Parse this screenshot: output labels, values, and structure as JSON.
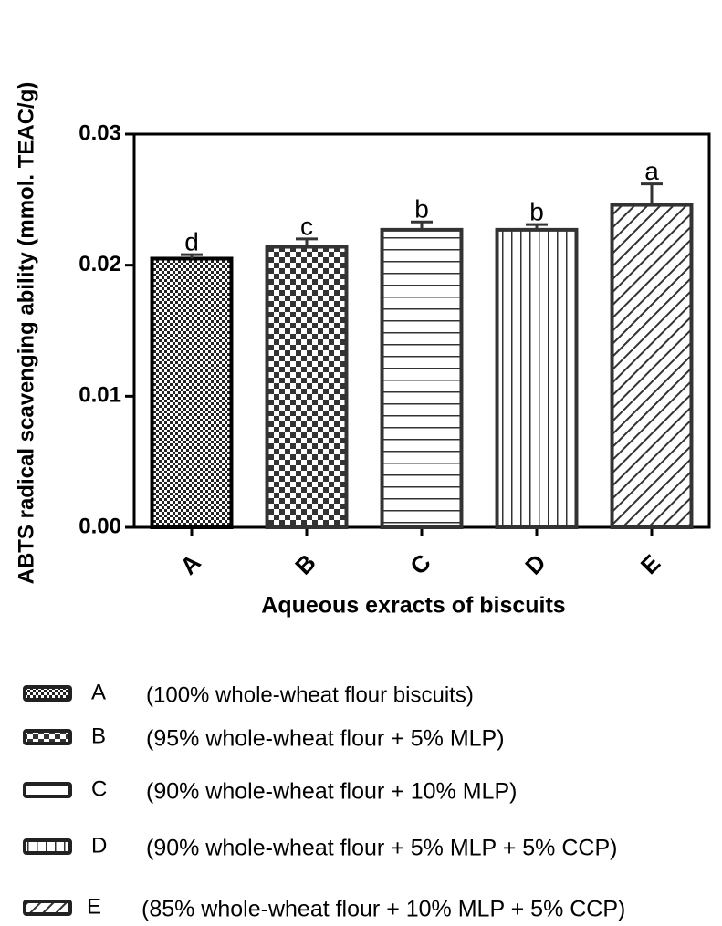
{
  "chart_data": {
    "type": "bar",
    "y_label": "ABTS radical scavenging ability (mmol. TEAC/g)",
    "x_label": "Aqueous exracts of biscuits",
    "categories": [
      "A",
      "B",
      "C",
      "D",
      "E"
    ],
    "values": [
      0.0205,
      0.0214,
      0.0227,
      0.0227,
      0.0246
    ],
    "errors": [
      0.0003,
      0.0006,
      0.0006,
      0.0004,
      0.0016
    ],
    "annotations": [
      "d",
      "c",
      "b",
      "b",
      "a"
    ],
    "patterns": [
      "checker-fine",
      "checker",
      "horizontal",
      "vertical",
      "diagonal"
    ],
    "color": "#333333",
    "ylim": [
      0,
      0.03
    ],
    "yticks": [
      {
        "value": 0,
        "label": "0.00"
      },
      {
        "value": 0.01,
        "label": "0.01"
      },
      {
        "value": 0.02,
        "label": "0.02"
      },
      {
        "value": 0.03,
        "label": "0.03"
      }
    ],
    "legend": [
      {
        "label": "A",
        "text": "(100% whole-wheat flour biscuits)"
      },
      {
        "label": "B",
        "text": "(95% whole-wheat flour + 5% MLP)"
      },
      {
        "label": "C",
        "text": "(90% whole-wheat flour + 10% MLP)"
      },
      {
        "label": "D",
        "text": "(90% whole-wheat flour + 5% MLP + 5% CCP)"
      },
      {
        "label": "E",
        "text": "(85% whole-wheat flour + 10% MLP + 5% CCP)"
      }
    ]
  }
}
